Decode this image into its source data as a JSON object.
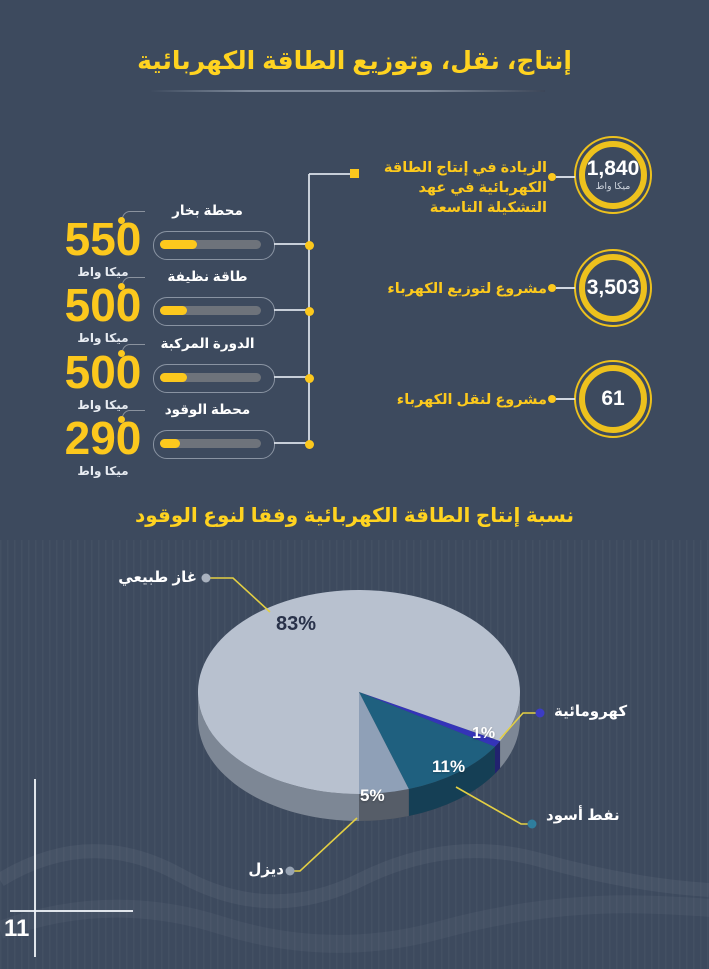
{
  "page": {
    "number": "11",
    "background": "#3d4a5e",
    "accent_yellow": "#fcc81d",
    "title_yellow": "#ffd320"
  },
  "header": {
    "title": "إنتاج، نقل، وتوزيع الطاقة الكهربائية"
  },
  "generation": {
    "items": [
      {
        "label": "محطة بخار",
        "value": "550",
        "unit": "ميكا واط",
        "fill_pct": 37
      },
      {
        "label": "طاقة نظيفة",
        "value": "500",
        "unit": "ميكا واط",
        "fill_pct": 27
      },
      {
        "label": "الدورة المركبة",
        "value": "500",
        "unit": "ميكا واط",
        "fill_pct": 27
      },
      {
        "label": "محطة الوقود",
        "value": "290",
        "unit": "ميكا واط",
        "fill_pct": 20
      }
    ]
  },
  "stats": {
    "items": [
      {
        "value": "1,840",
        "unit": "ميكا واط",
        "label_line1": "الزيادة في إنتاج الطاقة",
        "label_line2": "الكهربائية في عهد التشكيلة التاسعة"
      },
      {
        "value": "3,503",
        "unit": "",
        "label_line1": "مشروع لتوزيع الكهرباء",
        "label_line2": ""
      },
      {
        "value": "61",
        "unit": "",
        "label_line1": "مشروع لنقل الكهرباء",
        "label_line2": ""
      }
    ]
  },
  "pie_section": {
    "title": "نسبة إنتاج الطاقة الكهربائية وفقا لنوع الوقود"
  },
  "chart_data": {
    "type": "pie",
    "title": "نسبة إنتاج الطاقة الكهربائية وفقا لنوع الوقود",
    "unit": "%",
    "slices": [
      {
        "label": "غاز طبيعي",
        "value": 83,
        "pct_label": "83%",
        "color": "#b8c1cf",
        "side_color": "#7d8795",
        "dot_color": "#a9b2bf"
      },
      {
        "label": "كهرومائية",
        "value": 1,
        "pct_label": "1%",
        "color": "#3434b8",
        "side_color": "#22226f",
        "dot_color": "#3c3cc4"
      },
      {
        "label": "نفط أسود",
        "value": 11,
        "pct_label": "11%",
        "color": "#1f607f",
        "side_color": "#153f55",
        "dot_color": "#2f7e9e"
      },
      {
        "label": "ديزل",
        "value": 5,
        "pct_label": "5%",
        "color": "#8fa0b7",
        "side_color": "#565d68",
        "dot_color": "#97a3b3"
      }
    ],
    "layout": {
      "style": "3d",
      "start_angle_deg": 28.8,
      "clockwise_order": [
        1,
        2,
        3,
        0
      ],
      "legend": "callouts"
    }
  }
}
